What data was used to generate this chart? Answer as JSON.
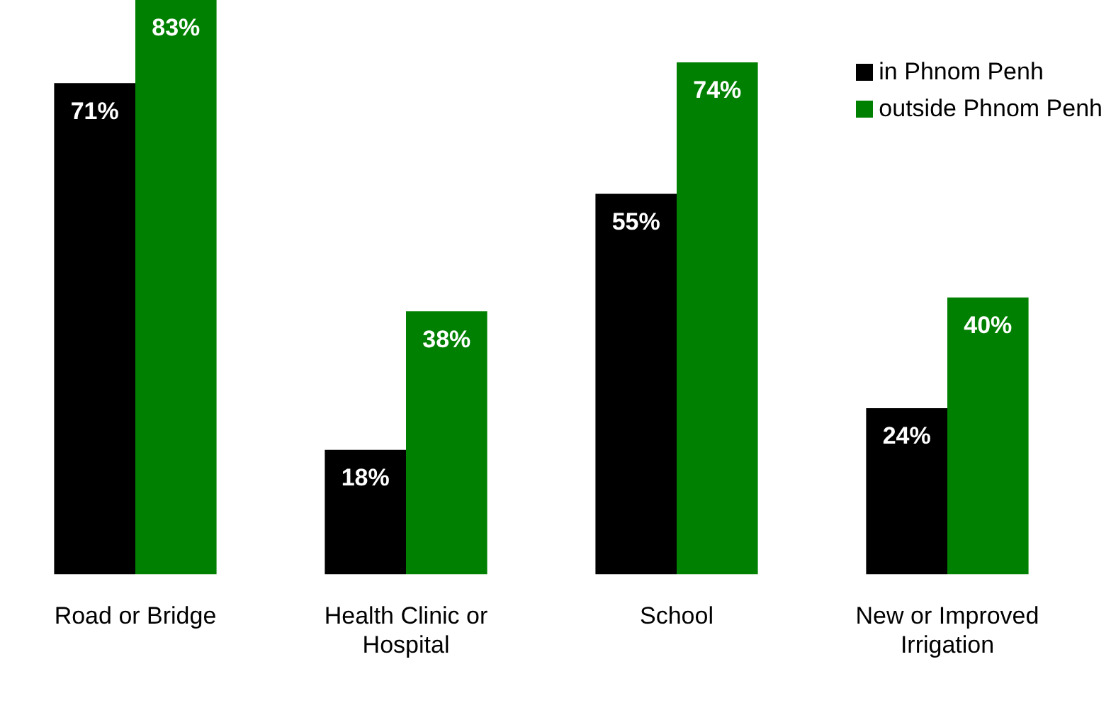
{
  "chart_data": {
    "type": "bar",
    "categories": [
      "Road or Bridge",
      "Health Clinic or Hospital",
      "School",
      "New or Improved Irrigation"
    ],
    "series": [
      {
        "name": "in Phnom Penh",
        "color": "#000000",
        "values": [
          71,
          18,
          55,
          24
        ],
        "value_labels": [
          "71%",
          "18%",
          "55%",
          "24%"
        ]
      },
      {
        "name": "outside Phnom Penh",
        "color": "#008000",
        "values": [
          83,
          38,
          74,
          40
        ],
        "value_labels": [
          "83%",
          "38%",
          "74%",
          "40%"
        ]
      }
    ],
    "tick_labels": "x",
    "grid": false,
    "legend": "top right"
  }
}
